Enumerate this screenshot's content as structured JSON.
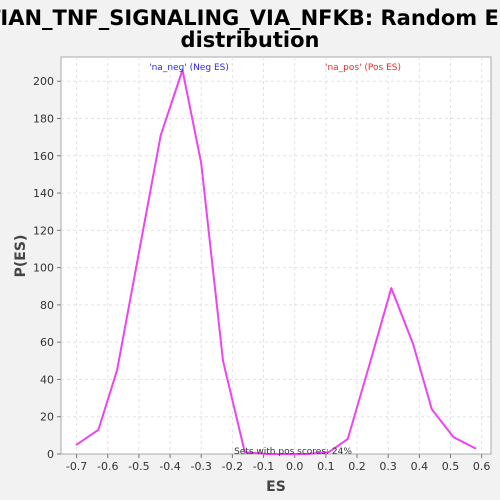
{
  "chart_data": {
    "type": "line",
    "title_line1": "TIAN_TNF_SIGNALING_VIA_NFKB: Random ES",
    "title_line2": "distribution",
    "xlabel": "ES",
    "ylabel": "P(ES)",
    "xlim": [
      -0.75,
      0.63
    ],
    "ylim": [
      0,
      213
    ],
    "x_ticks": [
      -0.7,
      -0.6,
      -0.5,
      -0.4,
      -0.3,
      -0.2,
      -0.1,
      0.0,
      0.1,
      0.2,
      0.3,
      0.4,
      0.5,
      0.6
    ],
    "x_tick_labels": [
      "-0.7",
      "-0.6",
      "-0.5",
      "-0.4",
      "-0.3",
      "-0.2",
      "-0.1",
      "0.0",
      "0.1",
      "0.2",
      "0.3",
      "0.4",
      "0.5",
      "0.6"
    ],
    "y_ticks": [
      0,
      20,
      40,
      60,
      80,
      100,
      120,
      140,
      160,
      180,
      200
    ],
    "y_tick_labels": [
      "0",
      "20",
      "40",
      "60",
      "80",
      "100",
      "120",
      "140",
      "160",
      "180",
      "200"
    ],
    "grid": true,
    "line_color": "#ee44ee",
    "series": [
      {
        "x": [
          -0.7,
          -0.63,
          -0.57,
          -0.5,
          -0.43,
          -0.36,
          -0.3,
          -0.23,
          -0.16,
          -0.09,
          -0.03,
          0.04,
          0.11,
          0.17,
          0.24,
          0.31,
          0.38,
          0.44,
          0.51,
          0.58
        ],
        "y": [
          5,
          13,
          45,
          108,
          171,
          206,
          156,
          50,
          1,
          0,
          0,
          0,
          1,
          8,
          48,
          89,
          59,
          24,
          9,
          3
        ]
      }
    ],
    "annotations": {
      "neg": {
        "text": "'na_neg' (Neg ES)",
        "color": "#2a2aee"
      },
      "pos": {
        "text": "'na_pos' (Pos ES)",
        "color": "#ee2a2a"
      },
      "footer": {
        "text": "Sets with pos scores: 24%",
        "color": "#333333"
      }
    }
  }
}
